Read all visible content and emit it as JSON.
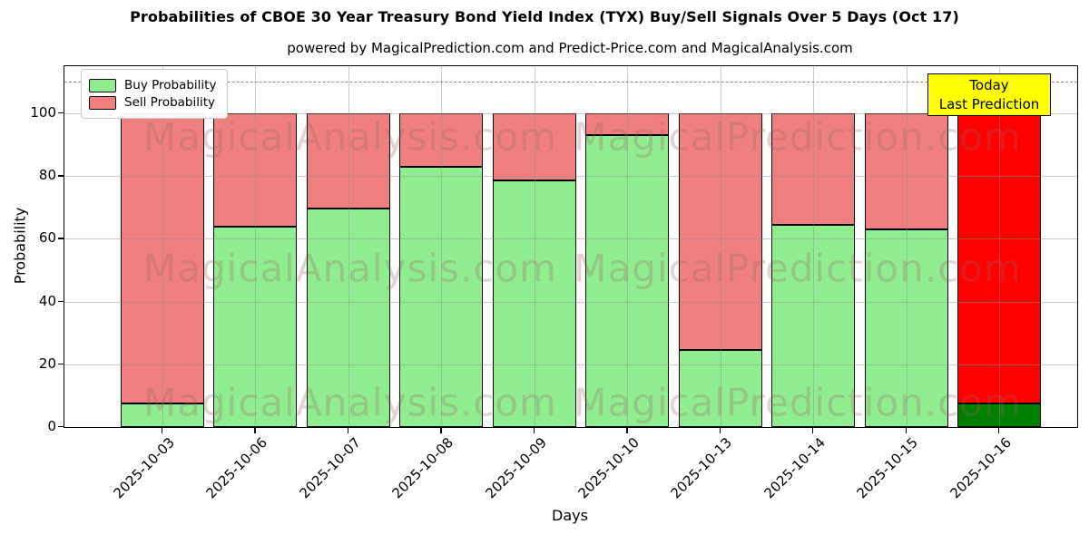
{
  "annotation": {
    "line1": "Today",
    "line2": "Last Prediction",
    "bg_color": "#FFFF00"
  },
  "watermarks": {
    "left_text": "MagicalAnalysis.com",
    "right_text": "MagicalPrediction.com",
    "color": "rgba(150,100,100,0.28)"
  },
  "colors": {
    "grid": "rgba(140,140,140,0.45)",
    "dashed_line": "#8a8a8a",
    "bar_edge": "#000000",
    "axis": "#000000",
    "background": "#ffffff"
  },
  "chart_data": {
    "type": "bar",
    "stacked": true,
    "title": "Probabilities of CBOE 30 Year Treasury Bond Yield Index (TYX) Buy/Sell Signals Over 5 Days (Oct 17)",
    "subtitle": "powered by MagicalPrediction.com and Predict-Price.com and MagicalAnalysis.com",
    "xlabel": "Days",
    "ylabel": "Probability",
    "ylim": [
      0,
      115
    ],
    "yticks": [
      0,
      20,
      40,
      60,
      80,
      100
    ],
    "grid": true,
    "legend_position": "upper left",
    "dashed_reference_line_y": 110,
    "categories": [
      "2025-10-03",
      "2025-10-06",
      "2025-10-07",
      "2025-10-08",
      "2025-10-09",
      "2025-10-10",
      "2025-10-13",
      "2025-10-14",
      "2025-10-15",
      "2025-10-16"
    ],
    "series": [
      {
        "name": "Buy Probability",
        "color": "#90EE90",
        "values": [
          7.5,
          64,
          69.5,
          83,
          78.5,
          93,
          24.5,
          64.5,
          63,
          7.5
        ]
      },
      {
        "name": "Sell Probability",
        "color": "#F08080",
        "values": [
          92.5,
          36,
          30.5,
          17,
          21.5,
          7,
          75.5,
          35.5,
          37,
          92.5
        ]
      }
    ],
    "today": {
      "category": "2025-10-16",
      "index": 9,
      "buy_color": "#008000",
      "sell_color": "#FF0000"
    }
  }
}
